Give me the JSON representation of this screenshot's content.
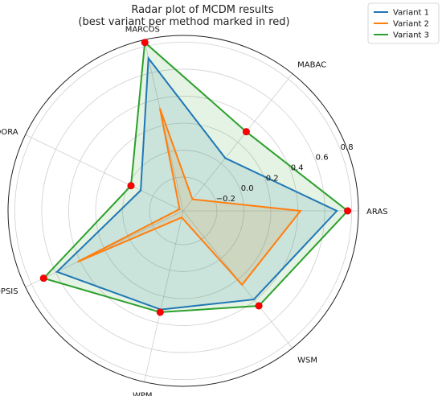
{
  "chart_data": {
    "type": "radar",
    "title": "Radar plot of MCDM results",
    "subtitle": "(best variant per method marked in red)",
    "axes": [
      "ARAS",
      "MABAC",
      "MARCOS",
      "MOORA",
      "TOPSIS",
      "WPM",
      "WSM"
    ],
    "rlim": [
      -0.45,
      0.85
    ],
    "rticks": [
      -0.2,
      0.0,
      0.2,
      0.4,
      0.6,
      0.8
    ],
    "rtick_labels": [
      "−0.2",
      "0.0",
      "0.2",
      "0.4",
      "0.6",
      "0.8"
    ],
    "grid": true,
    "legend": "top-right",
    "series": [
      {
        "name": "Variant 1",
        "color": "#1f77b4",
        "values": [
          0.69,
          0.05,
          0.71,
          -0.1,
          0.59,
          0.3,
          0.39
        ]
      },
      {
        "name": "Variant 2",
        "color": "#ff7f0e",
        "values": [
          0.42,
          -0.34,
          0.33,
          -0.42,
          0.42,
          -0.4,
          0.25
        ]
      },
      {
        "name": "Variant 3",
        "color": "#2ca02c",
        "values": [
          0.77,
          0.3,
          0.83,
          -0.02,
          0.7,
          0.32,
          0.45
        ]
      }
    ],
    "best_markers": {
      "color": "#ff0000",
      "values": [
        0.77,
        0.3,
        0.83,
        -0.02,
        0.7,
        0.32,
        0.45
      ]
    },
    "fill_area": {
      "color": "#c9c9c9"
    }
  }
}
